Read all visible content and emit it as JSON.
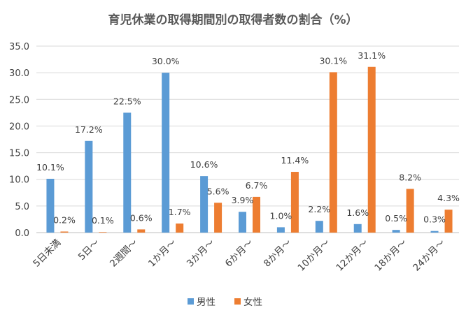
{
  "chart_data": {
    "type": "bar",
    "title": "育児休業の取得期間別の取得者数の割合（%）",
    "categories": [
      "5日未満",
      "5日～",
      "2週間～",
      "1か月～",
      "3か月～",
      "6か月～",
      "8か月～",
      "10か月～",
      "12か月～",
      "18か月～",
      "24か月～"
    ],
    "series": [
      {
        "name": "男性",
        "color": "#5b9bd5",
        "values": [
          10.1,
          17.2,
          22.5,
          30.0,
          10.6,
          3.9,
          1.0,
          2.2,
          1.6,
          0.5,
          0.3
        ]
      },
      {
        "name": "女性",
        "color": "#ed7d31",
        "values": [
          0.2,
          0.1,
          0.6,
          1.7,
          5.6,
          6.7,
          11.4,
          30.1,
          31.1,
          8.2,
          4.3
        ]
      }
    ],
    "ylim": [
      0,
      35
    ],
    "yticks": [
      "0.0",
      "5.0",
      "10.0",
      "15.0",
      "20.0",
      "25.0",
      "30.0",
      "35.0"
    ],
    "grid": true,
    "legend_position": "bottom"
  }
}
